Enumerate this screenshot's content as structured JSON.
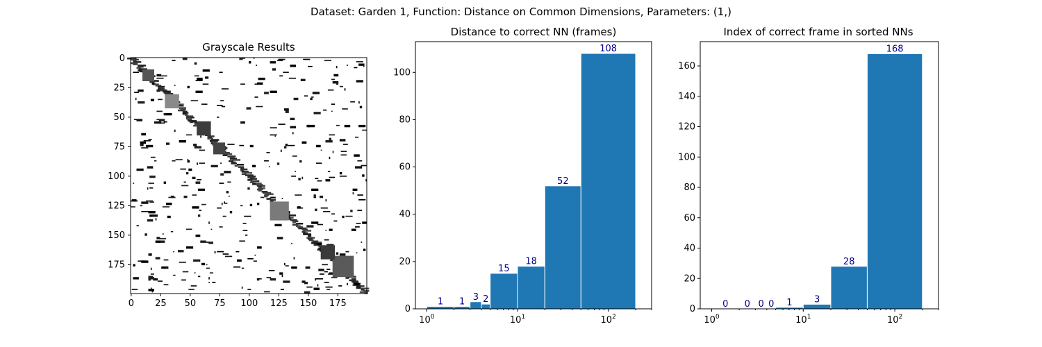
{
  "figure": {
    "suptitle": "Dataset:  Garden 1,  Function:  Distance on Common Dimensions, Parameters: (1,)"
  },
  "chart_data": [
    {
      "type": "heatmap",
      "title": "Grayscale Results",
      "colormap": "gray",
      "x_ticks": [
        "0",
        "25",
        "50",
        "75",
        "100",
        "125",
        "150",
        "175"
      ],
      "y_ticks": [
        "0",
        "25",
        "50",
        "75",
        "100",
        "125",
        "150",
        "175"
      ],
      "xlim": [
        0,
        200
      ],
      "ylim": [
        200,
        0
      ],
      "note_values": "200x200 matrix; white background with a dark diagonal band and scattered dark segments",
      "block_features": [
        {
          "cx": 35,
          "cy": 37,
          "r": 6,
          "tone": "#8a8a8a"
        },
        {
          "cx": 180,
          "cy": 177,
          "r": 9,
          "tone": "#5a5a5a"
        },
        {
          "cx": 167,
          "cy": 165,
          "r": 6,
          "tone": "#3a3a3a"
        },
        {
          "cx": 126,
          "cy": 130,
          "r": 8,
          "tone": "#7a7a7a"
        },
        {
          "cx": 62,
          "cy": 60,
          "r": 6,
          "tone": "#3c3c3c"
        },
        {
          "cx": 75,
          "cy": 77,
          "r": 5,
          "tone": "#444444"
        },
        {
          "cx": 15,
          "cy": 15,
          "r": 5,
          "tone": "#555555"
        }
      ]
    },
    {
      "type": "bar",
      "title": "Distance to correct NN (frames)",
      "x_scale": "log",
      "xlim": [
        0.75,
        300
      ],
      "ylim": [
        0,
        113
      ],
      "x_tick_labels": [
        {
          "value": 1,
          "base": "10",
          "exp": "0"
        },
        {
          "value": 10,
          "base": "10",
          "exp": "1"
        },
        {
          "value": 100,
          "base": "10",
          "exp": "2"
        }
      ],
      "y_ticks": [
        0,
        20,
        40,
        60,
        80,
        100
      ],
      "bins": [
        {
          "x0": 1,
          "x1": 2,
          "value": 1,
          "label": "1"
        },
        {
          "x0": 2,
          "x1": 3,
          "value": 1,
          "label": "1"
        },
        {
          "x0": 3,
          "x1": 4,
          "value": 3,
          "label": "3"
        },
        {
          "x0": 4,
          "x1": 5,
          "value": 2,
          "label": "2"
        },
        {
          "x0": 5,
          "x1": 10,
          "value": 15,
          "label": "15"
        },
        {
          "x0": 10,
          "x1": 20,
          "value": 18,
          "label": "18"
        },
        {
          "x0": 20,
          "x1": 50,
          "value": 52,
          "label": "52"
        },
        {
          "x0": 50,
          "x1": 200,
          "value": 108,
          "label": "108"
        }
      ],
      "bar_color": "#1f77b4",
      "label_color": "#00008b"
    },
    {
      "type": "bar",
      "title": "Index of correct frame in sorted NNs",
      "x_scale": "log",
      "xlim": [
        0.75,
        300
      ],
      "ylim": [
        0,
        176
      ],
      "x_tick_labels": [
        {
          "value": 1,
          "base": "10",
          "exp": "0"
        },
        {
          "value": 10,
          "base": "10",
          "exp": "1"
        },
        {
          "value": 100,
          "base": "10",
          "exp": "2"
        }
      ],
      "y_ticks": [
        0,
        20,
        40,
        60,
        80,
        100,
        120,
        140,
        160
      ],
      "bins": [
        {
          "x0": 1,
          "x1": 2,
          "value": 0,
          "label": "0"
        },
        {
          "x0": 2,
          "x1": 3,
          "value": 0,
          "label": "0"
        },
        {
          "x0": 3,
          "x1": 4,
          "value": 0,
          "label": "0"
        },
        {
          "x0": 4,
          "x1": 5,
          "value": 0,
          "label": "0"
        },
        {
          "x0": 5,
          "x1": 10,
          "value": 1,
          "label": "1"
        },
        {
          "x0": 10,
          "x1": 20,
          "value": 3,
          "label": "3"
        },
        {
          "x0": 20,
          "x1": 50,
          "value": 28,
          "label": "28"
        },
        {
          "x0": 50,
          "x1": 200,
          "value": 168,
          "label": "168"
        }
      ],
      "bar_color": "#1f77b4",
      "label_color": "#00008b"
    }
  ]
}
